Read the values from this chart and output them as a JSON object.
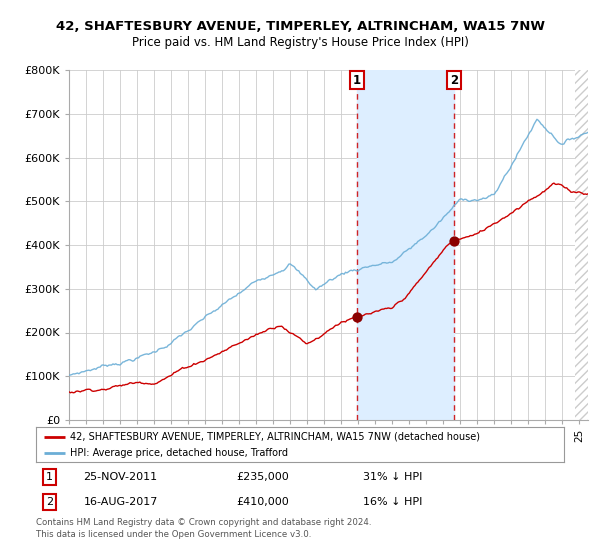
{
  "title": "42, SHAFTESBURY AVENUE, TIMPERLEY, ALTRINCHAM, WA15 7NW",
  "subtitle": "Price paid vs. HM Land Registry's House Price Index (HPI)",
  "legend_line1": "42, SHAFTESBURY AVENUE, TIMPERLEY, ALTRINCHAM, WA15 7NW (detached house)",
  "legend_line2": "HPI: Average price, detached house, Trafford",
  "purchase1_date": "25-NOV-2011",
  "purchase1_price": 235000,
  "purchase1_label": "31% ↓ HPI",
  "purchase2_date": "16-AUG-2017",
  "purchase2_price": 410000,
  "purchase2_label": "16% ↓ HPI",
  "purchase1_formatted": "£235,000",
  "purchase2_formatted": "£410,000",
  "copyright": "Contains HM Land Registry data © Crown copyright and database right 2024.\nThis data is licensed under the Open Government Licence v3.0.",
  "hpi_color": "#6baed6",
  "price_color": "#cc0000",
  "point_color": "#8b0000",
  "shade_color": "#ddeeff",
  "hatch_color": "#bbbbbb",
  "grid_color": "#cccccc",
  "bg_color": "#ffffff",
  "ylim": [
    0,
    800000
  ],
  "yticks": [
    0,
    100000,
    200000,
    300000,
    400000,
    500000,
    600000,
    700000,
    800000
  ],
  "ytick_labels": [
    "£0",
    "£100K",
    "£200K",
    "£300K",
    "£400K",
    "£500K",
    "£600K",
    "£700K",
    "£800K"
  ],
  "purchase1_x": 2011.92,
  "purchase2_x": 2017.62,
  "xmin": 1995.0,
  "xmax": 2025.5,
  "hatch_start": 2024.75
}
